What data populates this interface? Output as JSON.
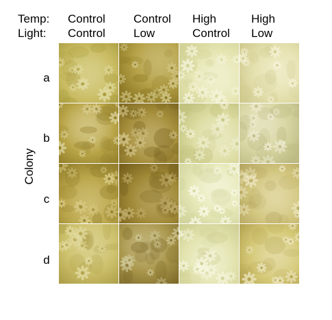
{
  "header": {
    "row1_label": "Temp:",
    "row2_label": "Light:",
    "columns": [
      {
        "temp": "Control",
        "light": "Control"
      },
      {
        "temp": "Control",
        "light": "Low"
      },
      {
        "temp": "High",
        "light": "Control"
      },
      {
        "temp": "High",
        "light": "Low"
      }
    ]
  },
  "y_axis_label": "Colony",
  "rows": [
    "a",
    "b",
    "c",
    "d"
  ],
  "tiles": [
    [
      {
        "base": "#c9bc63",
        "dark": "#a89a3c",
        "polyp": "#e2dca2"
      },
      {
        "base": "#b4a046",
        "dark": "#8e7a26",
        "polyp": "#d3c889"
      },
      {
        "base": "#e6e6b4",
        "dark": "#d2d296",
        "polyp": "#f7f7e0"
      },
      {
        "base": "#e4e0ad",
        "dark": "#cfc98e",
        "polyp": "#f6f3d8"
      }
    ],
    [
      {
        "base": "#b9a548",
        "dark": "#8f7c27",
        "polyp": "#e4dcab"
      },
      {
        "base": "#a48d3a",
        "dark": "#7a6520",
        "polyp": "#cebf82"
      },
      {
        "base": "#dcdca2",
        "dark": "#c2c27f",
        "polyp": "#f1f1d4"
      },
      {
        "base": "#d7d6a2",
        "dark": "#bcb983",
        "polyp": "#efedd3"
      }
    ],
    [
      {
        "base": "#b9a54a",
        "dark": "#917d2a",
        "polyp": "#d9cb86"
      },
      {
        "base": "#9e8735",
        "dark": "#765f1c",
        "polyp": "#c4b171"
      },
      {
        "base": "#e6e8b8",
        "dark": "#d1d49b",
        "polyp": "#fbfbe9"
      },
      {
        "base": "#d2c67f",
        "dark": "#b5a560",
        "polyp": "#ece5bd"
      }
    ],
    [
      {
        "base": "#cdc06c",
        "dark": "#ad9f48",
        "polyp": "#e3dca3"
      },
      {
        "base": "#a9964b",
        "dark": "#7f6c2b",
        "polyp": "#cfc796"
      },
      {
        "base": "#e2e3ae",
        "dark": "#cccd90",
        "polyp": "#f8f8e2"
      },
      {
        "base": "#d4c876",
        "dark": "#b2a24f",
        "polyp": "#eee7c0"
      }
    ]
  ]
}
